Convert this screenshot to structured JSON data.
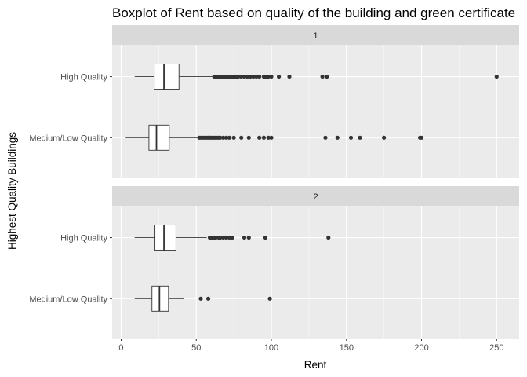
{
  "chart_data": {
    "type": "boxplot",
    "title": "Boxplot of Rent based on quality of the building and green certificate",
    "xlabel": "Rent",
    "ylabel": "Highest Quality Buildings",
    "orientation": "horizontal",
    "xlim": [
      -6,
      265
    ],
    "x_ticks": [
      0,
      50,
      100,
      150,
      200,
      250
    ],
    "x_tick_labels": [
      "0",
      "50",
      "100",
      "150",
      "200",
      "250"
    ],
    "grid": true,
    "categories": [
      "High Quality",
      "Medium/Low Quality"
    ],
    "facets": [
      {
        "label": "1",
        "boxes": [
          {
            "category": "High Quality",
            "whisker_low": 9,
            "q1": 22,
            "median": 28.5,
            "q3": 38.5,
            "whisker_high": 62,
            "outliers": [
              62,
              63,
              64,
              65,
              66,
              67,
              68,
              69,
              70,
              71,
              72,
              73,
              74,
              75,
              76,
              77,
              78,
              80,
              82,
              84,
              86,
              88,
              90,
              92,
              95,
              96,
              97,
              98,
              100,
              105,
              112,
              134,
              137,
              250
            ]
          },
          {
            "category": "Medium/Low Quality",
            "whisker_low": 3,
            "q1": 18.5,
            "median": 23.5,
            "q3": 32,
            "whisker_high": 52,
            "outliers": [
              52,
              53,
              54,
              55,
              56,
              57,
              58,
              59,
              60,
              61,
              62,
              63,
              64,
              65,
              66,
              68,
              70,
              72,
              75,
              80,
              85,
              92,
              95,
              98,
              100,
              136,
              144,
              153,
              159,
              175,
              199,
              200
            ]
          }
        ]
      },
      {
        "label": "2",
        "boxes": [
          {
            "category": "High Quality",
            "whisker_low": 9,
            "q1": 22.5,
            "median": 28.5,
            "q3": 36.5,
            "whisker_high": 57,
            "outliers": [
              59,
              60,
              61,
              62,
              63,
              65,
              66,
              68,
              70,
              72,
              74,
              82,
              85,
              96,
              138
            ]
          },
          {
            "category": "Medium/Low Quality",
            "whisker_low": 9,
            "q1": 20.5,
            "median": 25.5,
            "q3": 31.5,
            "whisker_high": 42,
            "outliers": [
              53,
              58,
              99
            ]
          }
        ]
      }
    ]
  }
}
